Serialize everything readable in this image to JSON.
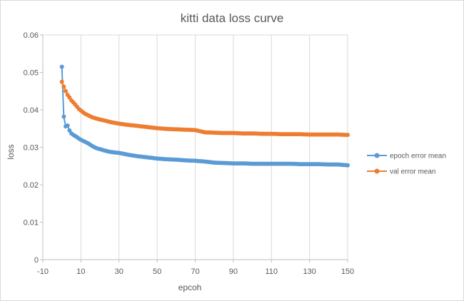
{
  "chart_data": {
    "type": "line",
    "title": "kitti data loss curve",
    "xlabel": "epcoh",
    "ylabel": "loss",
    "xlim": [
      -10,
      150
    ],
    "ylim": [
      0,
      0.06
    ],
    "xticks": [
      -10,
      10,
      30,
      50,
      70,
      90,
      110,
      130,
      150
    ],
    "yticks": [
      "0",
      "0.01",
      "0.02",
      "0.03",
      "0.04",
      "0.05",
      "0.06"
    ],
    "ytick_values": [
      0,
      0.01,
      0.02,
      0.03,
      0.04,
      0.05,
      0.06
    ],
    "grid": "vertical",
    "legend_position": "right",
    "colors": {
      "epoch_error_mean": "#5b9bd5",
      "val_error_mean": "#ed7d31",
      "grid": "#d9d9d9",
      "axis": "#bfbfbf"
    },
    "series": [
      {
        "name": "epoch error mean",
        "color": "#5b9bd5",
        "x": [
          0,
          1,
          2,
          3,
          4,
          5,
          6,
          7,
          8,
          9,
          10,
          12,
          14,
          16,
          18,
          20,
          22,
          25,
          28,
          30,
          33,
          36,
          40,
          45,
          50,
          55,
          60,
          65,
          70,
          75,
          80,
          85,
          90,
          95,
          100,
          105,
          110,
          115,
          120,
          125,
          130,
          135,
          140,
          145,
          150
        ],
        "y": [
          0.0515,
          0.0382,
          0.0356,
          0.0358,
          0.0345,
          0.0337,
          0.0333,
          0.033,
          0.0327,
          0.0323,
          0.032,
          0.0315,
          0.031,
          0.0303,
          0.0298,
          0.0295,
          0.0292,
          0.0288,
          0.0286,
          0.0285,
          0.0282,
          0.0279,
          0.0276,
          0.0273,
          0.027,
          0.0268,
          0.0267,
          0.0265,
          0.0264,
          0.0262,
          0.0259,
          0.0258,
          0.0257,
          0.0257,
          0.0256,
          0.0256,
          0.0256,
          0.0256,
          0.0256,
          0.0255,
          0.0255,
          0.0255,
          0.0254,
          0.0254,
          0.0252
        ]
      },
      {
        "name": "val error mean",
        "color": "#ed7d31",
        "x": [
          0,
          1,
          2,
          3,
          4,
          5,
          6,
          7,
          8,
          9,
          10,
          12,
          14,
          16,
          18,
          20,
          22,
          25,
          28,
          30,
          33,
          36,
          40,
          45,
          50,
          55,
          60,
          65,
          70,
          75,
          80,
          85,
          90,
          95,
          100,
          105,
          110,
          115,
          120,
          125,
          130,
          135,
          140,
          145,
          150
        ],
        "y": [
          0.0475,
          0.0462,
          0.045,
          0.044,
          0.0433,
          0.0425,
          0.042,
          0.0414,
          0.0408,
          0.0402,
          0.0398,
          0.039,
          0.0385,
          0.038,
          0.0377,
          0.0374,
          0.0372,
          0.0368,
          0.0365,
          0.0363,
          0.0361,
          0.0359,
          0.0357,
          0.0354,
          0.0351,
          0.0349,
          0.0348,
          0.0347,
          0.0346,
          0.034,
          0.0339,
          0.0338,
          0.0338,
          0.0337,
          0.0337,
          0.0336,
          0.0336,
          0.0335,
          0.0335,
          0.0335,
          0.0334,
          0.0334,
          0.0334,
          0.0334,
          0.0333
        ]
      }
    ]
  }
}
